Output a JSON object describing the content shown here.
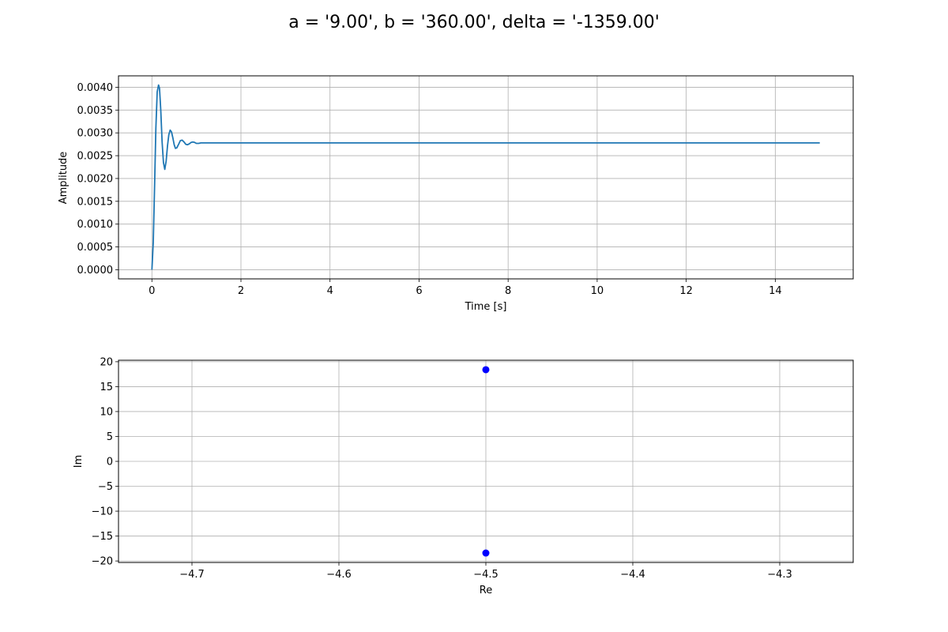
{
  "figure": {
    "suptitle": "a = '9.00', b = '360.00', delta = '-1359.00'"
  },
  "chart_data": [
    {
      "type": "line",
      "name": "step-response",
      "title": "",
      "xlabel": "Time [s]",
      "ylabel": "Amplitude",
      "xlim": [
        -0.75,
        15.75
      ],
      "ylim": [
        -0.0002,
        0.00425
      ],
      "xticks": [
        0,
        2,
        4,
        6,
        8,
        10,
        12,
        14
      ],
      "xtick_labels": [
        "0",
        "2",
        "4",
        "6",
        "8",
        "10",
        "12",
        "14"
      ],
      "yticks": [
        0,
        0.0005,
        0.001,
        0.0015,
        0.002,
        0.0025,
        0.003,
        0.0035,
        0.004
      ],
      "ytick_labels": [
        "0.0000",
        "0.0005",
        "0.0010",
        "0.0015",
        "0.0020",
        "0.0025",
        "0.0030",
        "0.0035",
        "0.0040"
      ],
      "grid": true,
      "line_color": "#1f77b4",
      "series": [
        {
          "x": [
            0,
            0.03,
            0.06,
            0.09,
            0.12,
            0.15,
            0.17,
            0.2,
            0.23,
            0.26,
            0.29,
            0.32,
            0.35,
            0.38,
            0.41,
            0.44,
            0.47,
            0.5,
            0.53,
            0.56,
            0.6,
            0.64,
            0.68,
            0.72,
            0.76,
            0.8,
            0.84,
            0.88,
            0.92,
            0.96,
            1.0,
            1.05,
            1.1,
            1.15,
            1.2,
            1.25,
            1.3,
            1.35,
            1.4,
            1.5,
            1.6,
            1.7,
            1.8,
            2,
            3,
            5,
            8,
            11,
            15
          ],
          "y": [
            0,
            0.0006,
            0.00185,
            0.0031,
            0.0039,
            0.00405,
            0.00398,
            0.0035,
            0.0028,
            0.00235,
            0.0022,
            0.00238,
            0.00271,
            0.00296,
            0.00306,
            0.00302,
            0.00289,
            0.00274,
            0.00266,
            0.00267,
            0.00275,
            0.00283,
            0.00284,
            0.0028,
            0.00275,
            0.00274,
            0.00276,
            0.00279,
            0.0028,
            0.00279,
            0.00277,
            0.00277,
            0.00278,
            0.00278,
            0.00278,
            0.00278,
            0.00278,
            0.00278,
            0.00278,
            0.00278,
            0.00278,
            0.00278,
            0.00278,
            0.00278,
            0.00278,
            0.00278,
            0.00278,
            0.00278,
            0.00278
          ]
        }
      ]
    },
    {
      "type": "scatter",
      "name": "pole-map",
      "title": "",
      "xlabel": "Re",
      "ylabel": "Im",
      "xlim": [
        -4.75,
        -4.25
      ],
      "ylim": [
        -20.3,
        20.3
      ],
      "xticks": [
        -4.7,
        -4.6,
        -4.5,
        -4.4,
        -4.3
      ],
      "xtick_labels": [
        "−4.7",
        "−4.6",
        "−4.5",
        "−4.4",
        "−4.3"
      ],
      "yticks": [
        -20,
        -15,
        -10,
        -5,
        0,
        5,
        10,
        15,
        20
      ],
      "ytick_labels": [
        "−20",
        "−15",
        "−10",
        "−5",
        "0",
        "5",
        "10",
        "15",
        "20"
      ],
      "grid": true,
      "marker_color": "#0000ff",
      "series": [
        {
          "points": [
            {
              "x": -4.5,
              "y": 18.4
            },
            {
              "x": -4.5,
              "y": -18.4
            }
          ]
        }
      ]
    }
  ]
}
